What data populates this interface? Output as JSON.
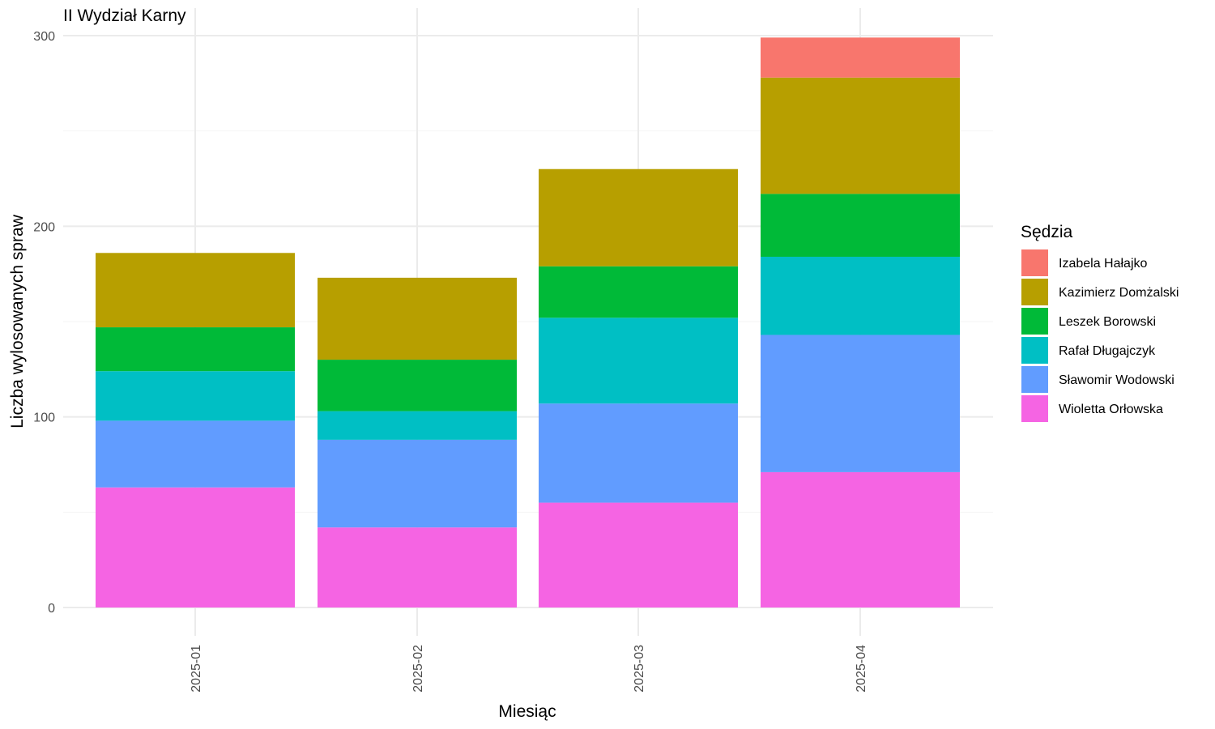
{
  "chart_data": {
    "type": "bar",
    "stacked": true,
    "title": "II Wydział Karny",
    "xlabel": "Miesiąc",
    "ylabel": "Liczba wylosowanych spraw",
    "categories": [
      "2025-01",
      "2025-02",
      "2025-03",
      "2025-04"
    ],
    "ylim": [
      0,
      300
    ],
    "yticks": [
      0,
      100,
      200,
      300
    ],
    "grid": true,
    "legend": {
      "title": "Sędzia",
      "placement": "right"
    },
    "series": [
      {
        "name": "Wioletta Orłowska",
        "color": "#F564E3",
        "values": [
          63,
          42,
          55,
          71
        ]
      },
      {
        "name": "Sławomir Wodowski",
        "color": "#619CFF",
        "values": [
          35,
          46,
          52,
          72
        ]
      },
      {
        "name": "Rafał Długajczyk",
        "color": "#00BFC4",
        "values": [
          26,
          15,
          45,
          41
        ]
      },
      {
        "name": "Leszek Borowski",
        "color": "#00BA38",
        "values": [
          23,
          27,
          27,
          33
        ]
      },
      {
        "name": "Kazimierz Domżalski",
        "color": "#B79F00",
        "values": [
          39,
          43,
          51,
          61
        ]
      },
      {
        "name": "Izabela Hałajko",
        "color": "#F8766D",
        "values": [
          0,
          0,
          0,
          21
        ]
      }
    ],
    "legend_order": [
      "Izabela Hałajko",
      "Kazimierz Domżalski",
      "Leszek Borowski",
      "Rafał Długajczyk",
      "Sławomir Wodowski",
      "Wioletta Orłowska"
    ]
  }
}
